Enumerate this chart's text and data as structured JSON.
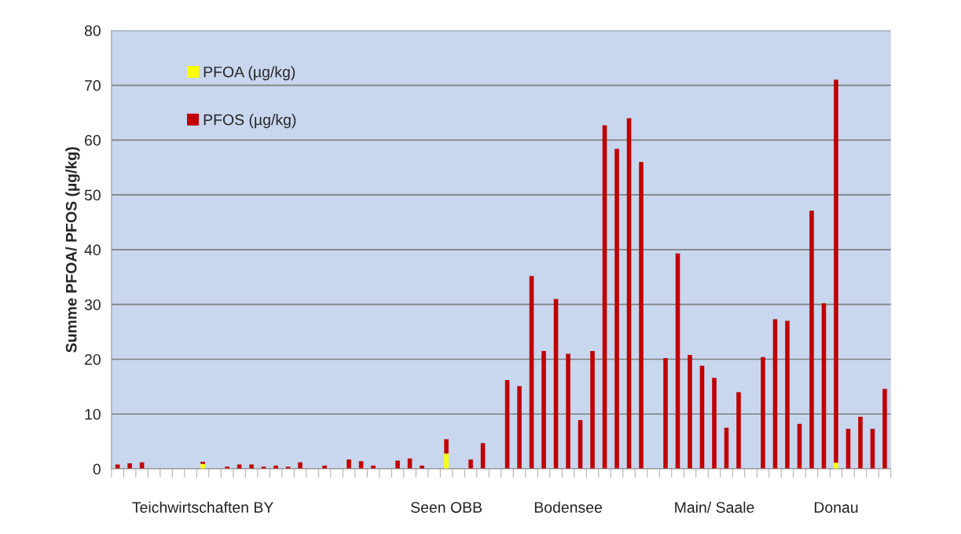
{
  "chart_data": {
    "type": "bar",
    "stacked": true,
    "ylabel": "Summe PFOA/ PFOS (µg/kg)",
    "categories": [
      null,
      null,
      null,
      null,
      null,
      null,
      null,
      "Teichwirtschaften BY",
      null,
      null,
      null,
      null,
      null,
      null,
      null,
      null,
      null,
      null,
      null,
      null,
      null,
      null,
      null,
      null,
      null,
      null,
      null,
      "Seen OBB",
      null,
      null,
      null,
      null,
      null,
      null,
      null,
      null,
      null,
      "Bodensee",
      null,
      null,
      null,
      null,
      null,
      null,
      null,
      null,
      null,
      null,
      null,
      "Main/ Saale",
      null,
      null,
      null,
      null,
      null,
      null,
      null,
      null,
      null,
      "Donau",
      null,
      null,
      null,
      null
    ],
    "series": [
      {
        "name": "PFOA (µg/kg)",
        "color": "#ffff00",
        "values": [
          null,
          null,
          null,
          null,
          null,
          null,
          null,
          0.9,
          null,
          null,
          null,
          null,
          null,
          null,
          null,
          null,
          null,
          null,
          null,
          null,
          null,
          null,
          null,
          null,
          null,
          null,
          null,
          2.8,
          null,
          null,
          null,
          null,
          null,
          null,
          null,
          null,
          null,
          null,
          null,
          null,
          null,
          null,
          null,
          null,
          null,
          null,
          null,
          null,
          null,
          null,
          null,
          null,
          null,
          null,
          null,
          null,
          null,
          null,
          null,
          1.1,
          null,
          null,
          null,
          null
        ]
      },
      {
        "name": "PFOS (µg/kg)",
        "color": "#c00000",
        "values": [
          0.8,
          1.0,
          1.2,
          null,
          null,
          null,
          null,
          0.4,
          null,
          0.4,
          0.8,
          0.8,
          0.4,
          0.6,
          0.4,
          1.2,
          null,
          0.6,
          null,
          1.7,
          1.4,
          0.6,
          null,
          1.5,
          1.9,
          0.6,
          null,
          2.6,
          null,
          1.7,
          4.7,
          null,
          16.2,
          15.1,
          35.2,
          21.5,
          31.0,
          21.0,
          8.9,
          21.5,
          62.7,
          58.4,
          64.0,
          56.0,
          null,
          20.2,
          39.3,
          20.8,
          18.8,
          16.6,
          7.5,
          14.0,
          null,
          20.4,
          27.3,
          27.0,
          8.2,
          47.1,
          30.2,
          69.9,
          7.3,
          9.5,
          7.3,
          14.6
        ]
      }
    ],
    "ylim": [
      0,
      80
    ],
    "yticks": [
      0,
      10,
      20,
      30,
      40,
      50,
      60,
      70,
      80
    ],
    "grid": "y",
    "legend": "top left"
  }
}
